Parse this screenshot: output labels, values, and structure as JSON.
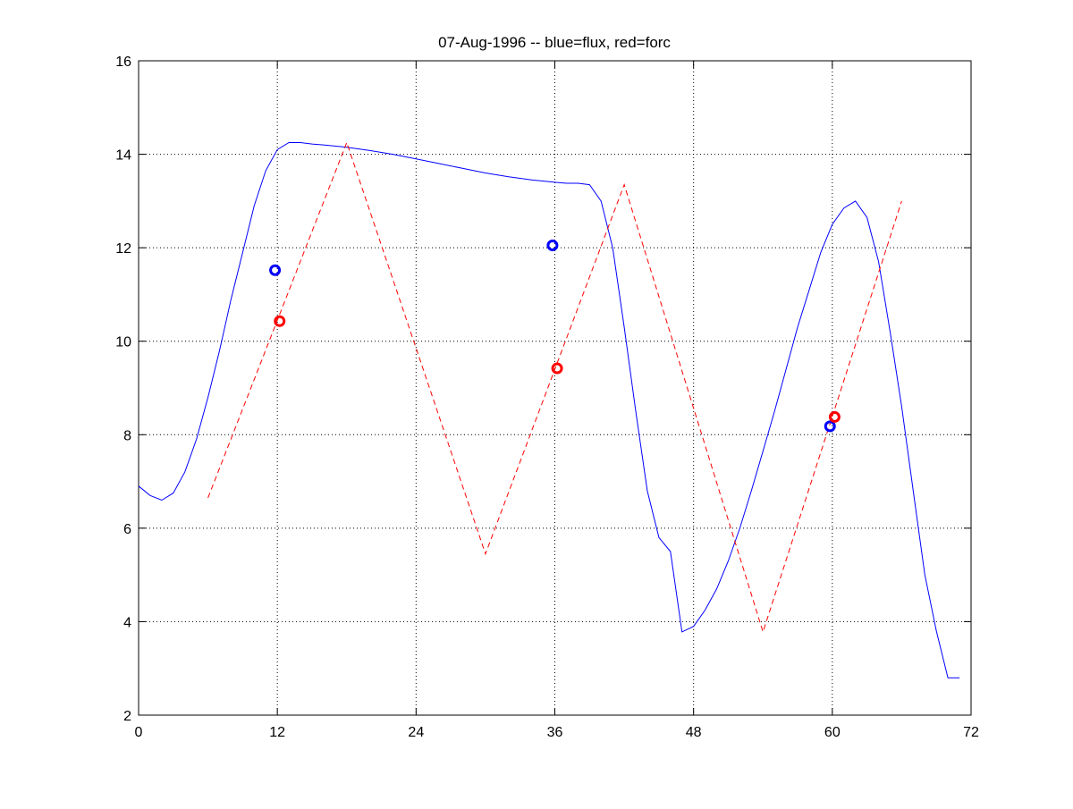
{
  "chart_data": {
    "type": "line",
    "title": "07-Aug-1996 -- blue=flux, red=forc",
    "xlabel": "",
    "ylabel": "",
    "xlim": [
      0,
      72
    ],
    "ylim": [
      2,
      16
    ],
    "xticks": [
      0,
      12,
      24,
      36,
      48,
      60,
      72
    ],
    "yticks": [
      2,
      4,
      6,
      8,
      10,
      12,
      14,
      16
    ],
    "xtick_labels": [
      "0",
      "12",
      "24",
      "36",
      "48",
      "60",
      "72"
    ],
    "ytick_labels": [
      "2",
      "4",
      "6",
      "8",
      "10",
      "12",
      "14",
      "16"
    ],
    "grid": true,
    "series": [
      {
        "color": "#0000ff",
        "style": "solid",
        "x": [
          0,
          1,
          2,
          3,
          4,
          5,
          6,
          7,
          8,
          9,
          10,
          11,
          12,
          13,
          14,
          15,
          16,
          18,
          20,
          22,
          24,
          26,
          28,
          30,
          32,
          34,
          36,
          37,
          38,
          39,
          40,
          41,
          42,
          43,
          44,
          45,
          46,
          47,
          48,
          49,
          50,
          51,
          52,
          53,
          54,
          55,
          56,
          57,
          58,
          59,
          60,
          61,
          62,
          63,
          64,
          65,
          66,
          67,
          68,
          69,
          70,
          71
        ],
        "y": [
          6.9,
          6.7,
          6.6,
          6.75,
          7.2,
          7.9,
          8.8,
          9.8,
          10.9,
          11.9,
          12.9,
          13.65,
          14.1,
          14.25,
          14.25,
          14.22,
          14.2,
          14.15,
          14.08,
          14.0,
          13.9,
          13.8,
          13.7,
          13.6,
          13.52,
          13.45,
          13.4,
          13.38,
          13.38,
          13.35,
          13.0,
          12.0,
          10.3,
          8.5,
          6.8,
          5.8,
          5.5,
          3.78,
          3.9,
          4.25,
          4.7,
          5.3,
          6.0,
          6.8,
          7.65,
          8.5,
          9.4,
          10.3,
          11.1,
          11.9,
          12.5,
          12.85,
          13.0,
          12.65,
          11.7,
          10.2,
          8.6,
          6.8,
          5.0,
          3.8,
          2.8,
          2.8
        ]
      },
      {
        "color": "#ff0000",
        "style": "dashed",
        "x": [
          6,
          18,
          30,
          42,
          54,
          66
        ],
        "y": [
          6.65,
          14.25,
          5.45,
          13.35,
          3.78,
          13.0
        ]
      },
      {
        "color": "#0000ff",
        "style": "markers",
        "marker": "o",
        "x": [
          11.8,
          35.8,
          59.8
        ],
        "y": [
          11.52,
          12.05,
          8.18
        ]
      },
      {
        "color": "#ff0000",
        "style": "markers",
        "marker": "o",
        "x": [
          12.2,
          36.2,
          60.2
        ],
        "y": [
          10.43,
          9.42,
          8.38
        ]
      }
    ]
  }
}
